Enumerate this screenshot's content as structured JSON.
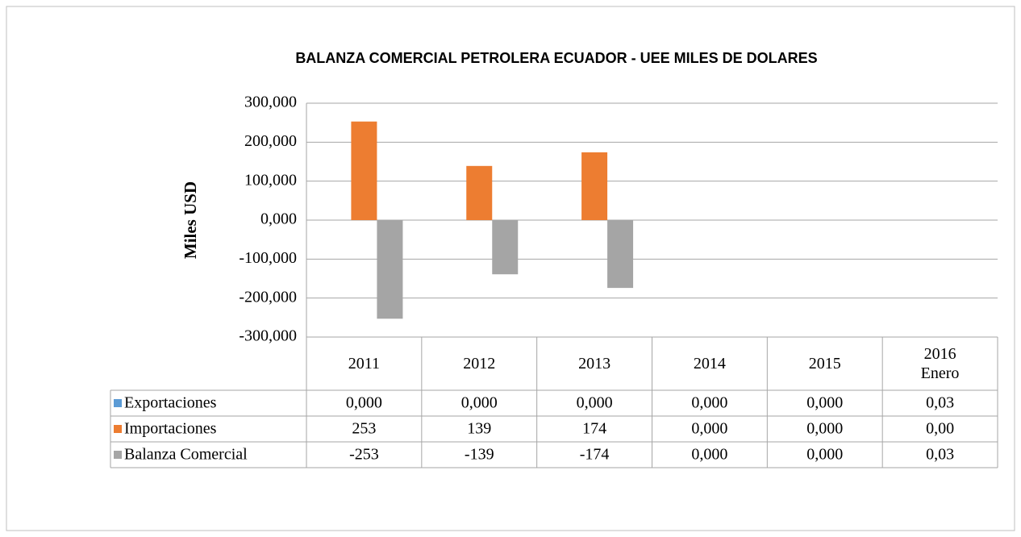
{
  "chart_data": {
    "type": "bar",
    "title": "BALANZA COMERCIAL PETROLERA ECUADOR - UEE MILES DE DOLARES",
    "y_label": "Miles USD",
    "categories": [
      "2011",
      "2012",
      "2013",
      "2014",
      "2015",
      "2016 Enero"
    ],
    "series": [
      {
        "name": "Exportaciones",
        "color": "#5b9bd5",
        "values": [
          0,
          0,
          0,
          0,
          0,
          0.03
        ],
        "value_labels": [
          "0,000",
          "0,000",
          "0,000",
          "0,000",
          "0,000",
          "0,03"
        ]
      },
      {
        "name": "Importaciones",
        "color": "#ed7d31",
        "values": [
          253,
          139,
          174,
          0,
          0,
          0
        ],
        "value_labels": [
          "253",
          "139",
          "174",
          "0,000",
          "0,000",
          "0,00"
        ]
      },
      {
        "name": "Balanza Comercial",
        "color": "#a5a5a5",
        "values": [
          -253,
          -139,
          -174,
          0,
          0,
          0.03
        ],
        "value_labels": [
          "-253",
          "-139",
          "-174",
          "0,000",
          "0,000",
          "0,03"
        ]
      }
    ],
    "ylim": [
      -300,
      300
    ],
    "yticks": [
      {
        "value": -300,
        "label": "-300,000"
      },
      {
        "value": -200,
        "label": "-200,000"
      },
      {
        "value": -100,
        "label": "-100,000"
      },
      {
        "value": 0,
        "label": "0,000"
      },
      {
        "value": 100,
        "label": "100,000"
      },
      {
        "value": 200,
        "label": "200,000"
      },
      {
        "value": 300,
        "label": "300,000"
      }
    ],
    "grid": true
  }
}
